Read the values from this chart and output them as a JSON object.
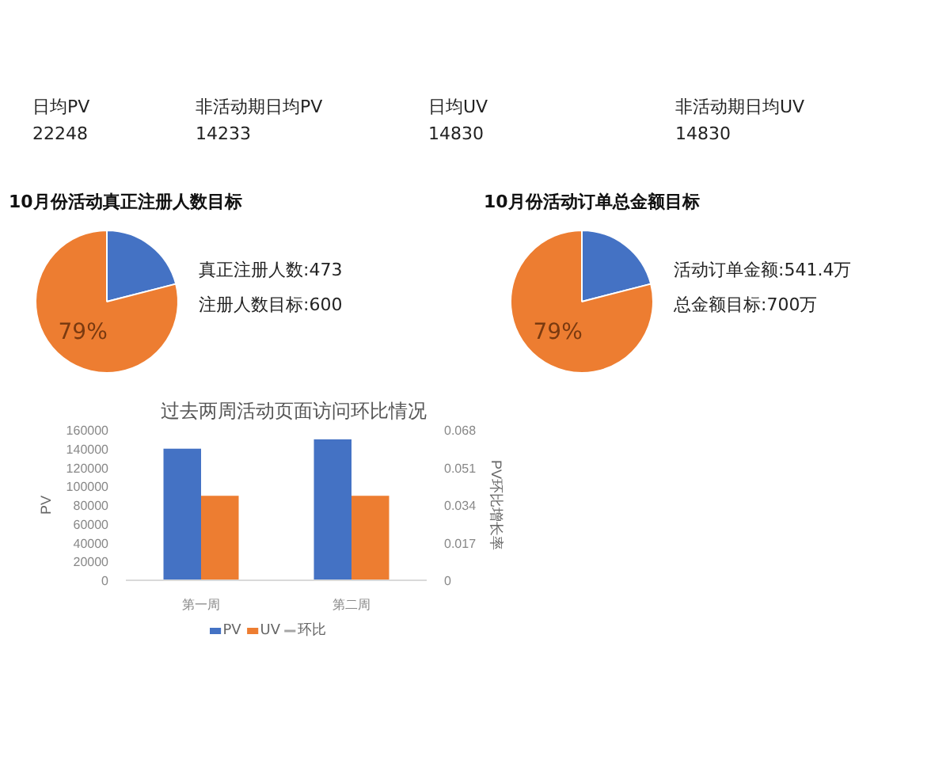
{
  "chart_data": [
    {
      "type": "other",
      "annotations": [
        "日均PV",
        "22248",
        "非活动期日均PV",
        "14233",
        "日均UV",
        "14830",
        "非活动期日均UV",
        "14830"
      ]
    },
    {
      "type": "pie",
      "title": "10月份活动真正注册人数目标",
      "categories": [
        null,
        null
      ],
      "values": [
        21,
        79
      ],
      "colors": [
        "#4472c4",
        "#ed7d31"
      ],
      "value_labels": [
        null,
        "79%"
      ],
      "annotations": [
        "真正注册人数:473",
        "注册人数目标:600"
      ]
    },
    {
      "type": "pie",
      "title": "10月份活动订单总金额目标",
      "categories": [
        null,
        null
      ],
      "values": [
        21,
        79
      ],
      "colors": [
        "#4472c4",
        "#ed7d31"
      ],
      "value_labels": [
        null,
        "79%"
      ],
      "annotations": [
        "活动订单金额:541.4万",
        "总金额目标:700万"
      ]
    },
    {
      "type": "bar",
      "title": "过去两周活动页面访问环比情况",
      "categories": [
        "第一周",
        "第二周"
      ],
      "ylabel": "PV",
      "y2label": "PV环比增长率",
      "ylim": [
        0,
        160000
      ],
      "yticks": [
        0,
        20000,
        40000,
        60000,
        80000,
        100000,
        120000,
        140000,
        160000
      ],
      "y2lim": [
        0,
        0.068
      ],
      "y2ticks": [
        0,
        0.017,
        0.034,
        0.051,
        0.068
      ],
      "grid": false,
      "legend": "bottom",
      "series": [
        {
          "name": "PV",
          "color": "#4472c4",
          "values": [
            140000,
            150000
          ]
        },
        {
          "name": "UV",
          "color": "#ed7d31",
          "values": [
            90000,
            90000
          ]
        },
        {
          "name": "环比",
          "type": "line",
          "color": "#a5a5a5",
          "values": [
            null,
            null
          ]
        }
      ]
    }
  ]
}
